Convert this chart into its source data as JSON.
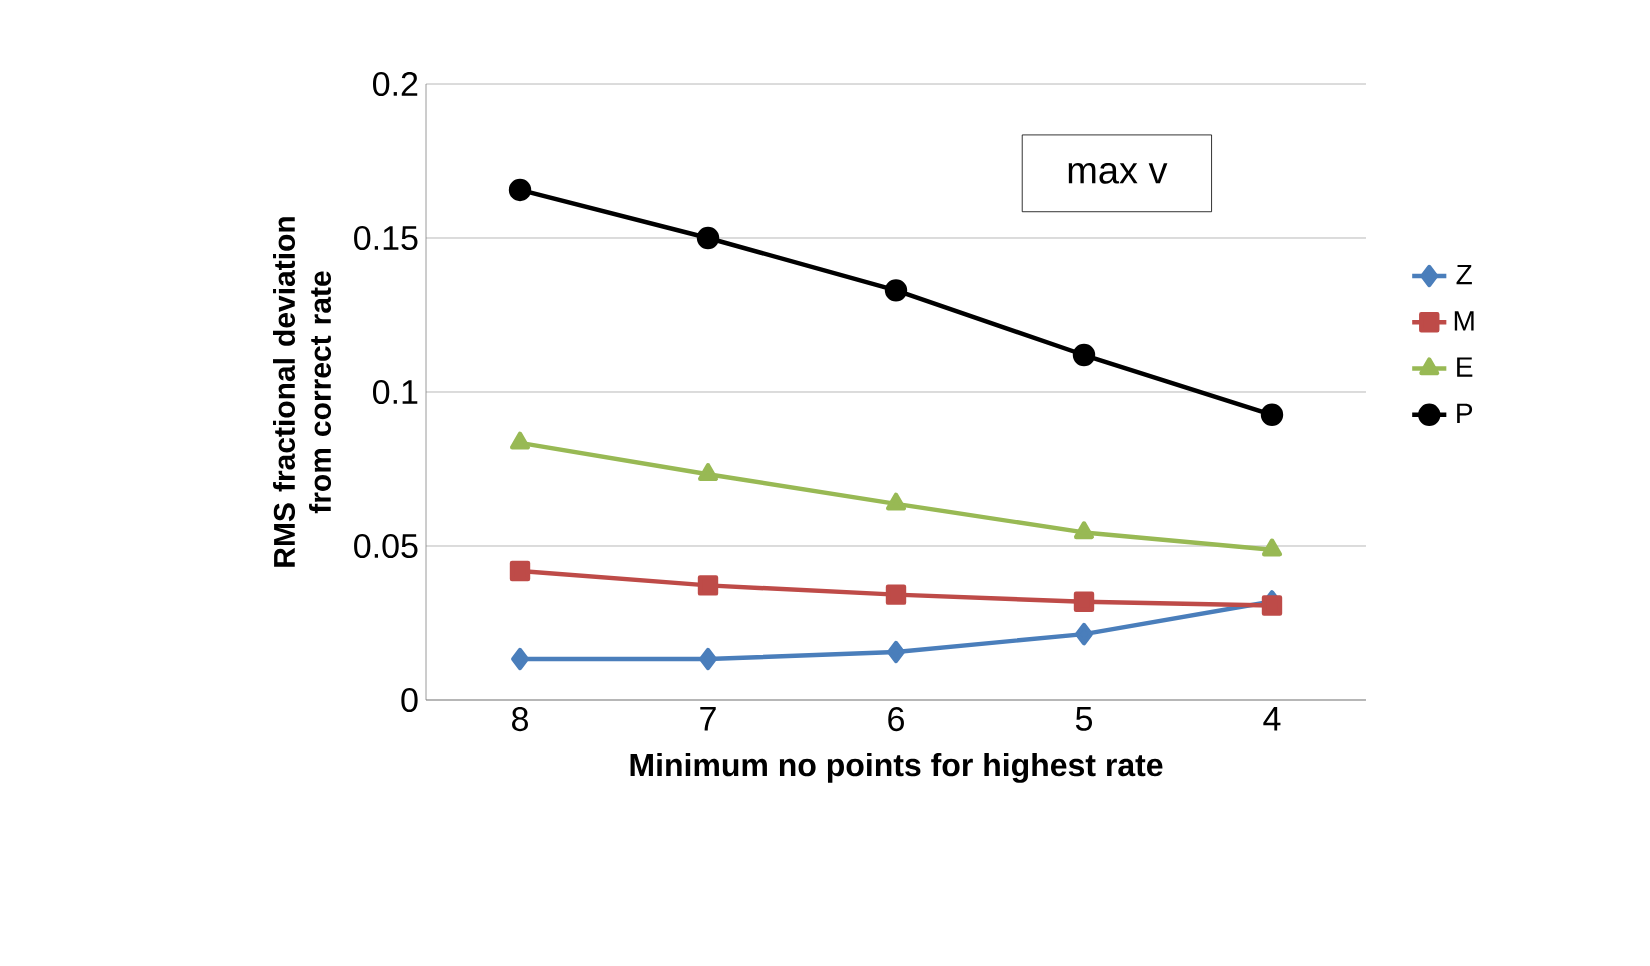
{
  "chart_data": {
    "type": "line",
    "xlabel": "Minimum no points for highest rate",
    "ylabel": "RMS fractional deviation from correct rate",
    "annotations": [
      "max v"
    ],
    "categories": [
      "8",
      "7",
      "6",
      "5",
      "4"
    ],
    "series": [
      {
        "name": "Z",
        "color": "#4a7ebb",
        "marker": "diamond",
        "values": [
          0.0133,
          0.0133,
          0.0156,
          0.0214,
          0.032
        ]
      },
      {
        "name": "M",
        "color": "#be4b48",
        "marker": "square",
        "values": [
          0.0419,
          0.0372,
          0.0342,
          0.0319,
          0.0307
        ]
      },
      {
        "name": "E",
        "color": "#98b954",
        "marker": "triangle",
        "values": [
          0.0835,
          0.0733,
          0.0637,
          0.0544,
          0.0488
        ]
      },
      {
        "name": "P",
        "color": "#000000",
        "marker": "circle",
        "values": [
          0.1656,
          0.15,
          0.133,
          0.112,
          0.0926
        ]
      }
    ],
    "ylim": [
      0,
      0.2
    ],
    "yticks": [
      0,
      0.05,
      0.1,
      0.15,
      0.2
    ],
    "grid": "y",
    "legend": "right",
    "line_style": "solid"
  }
}
